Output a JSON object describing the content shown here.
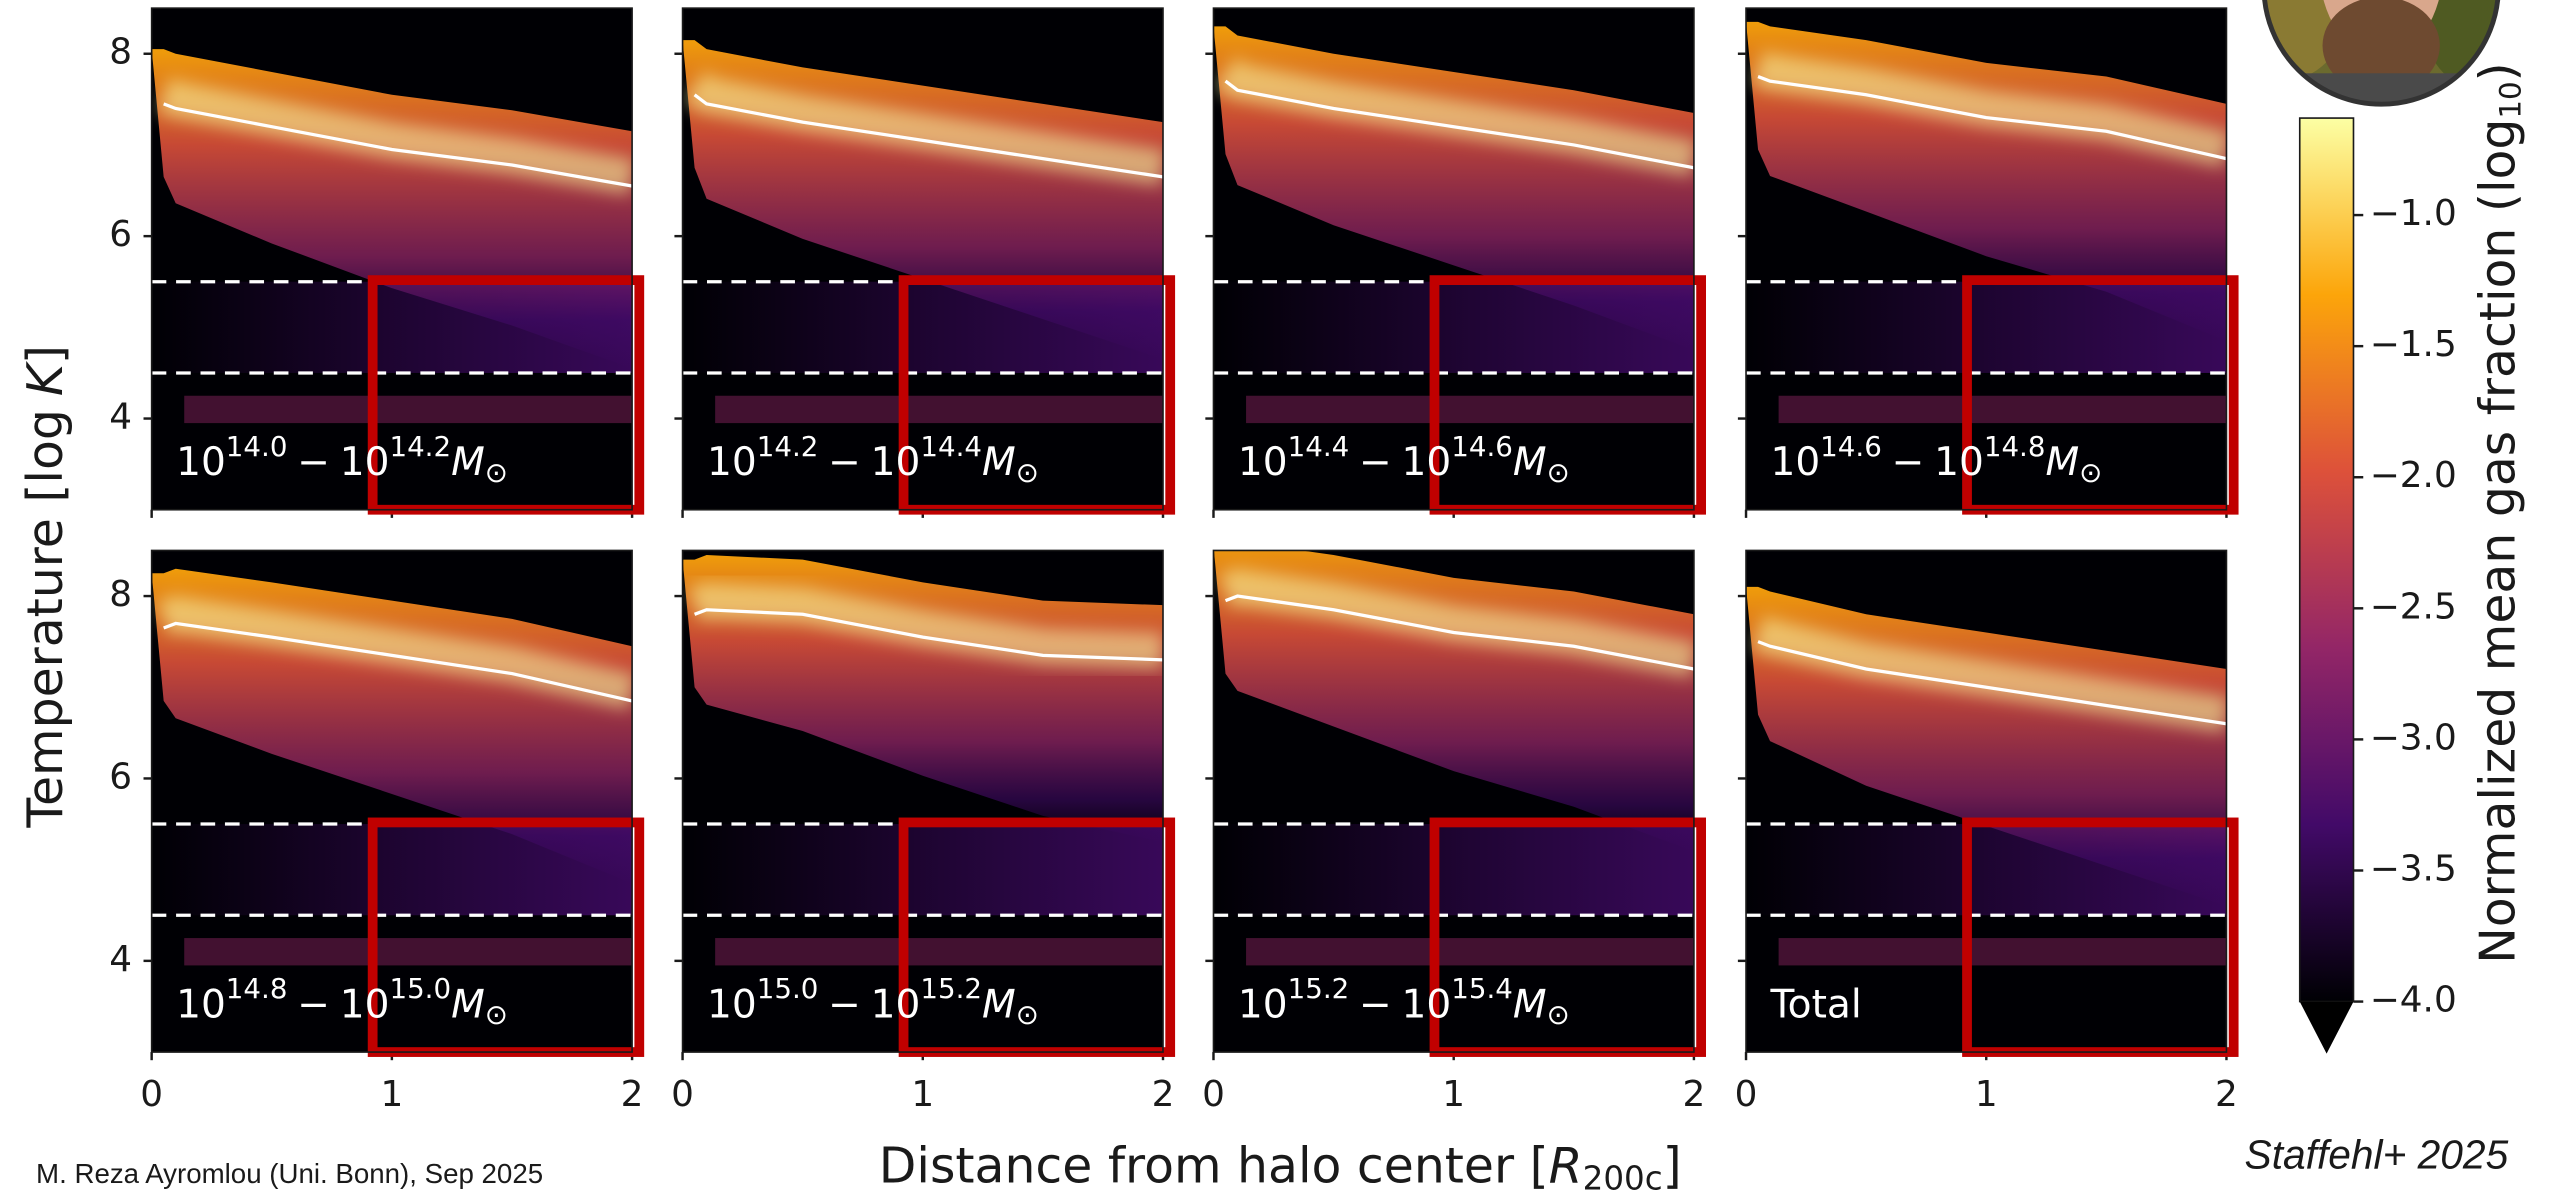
{
  "chart_data": {
    "type": "heatmap_grid",
    "ylabel": "Temperature [log",
    "ylabel_var": "K",
    "ylabel_end": "]",
    "xlabel": "Distance from halo center [",
    "xlabel_var": "R",
    "xlabel_sub": "200c",
    "xlabel_end": "]",
    "xlim": [
      0,
      2
    ],
    "xticks": [
      0,
      1,
      2
    ],
    "ylim": [
      3,
      8.5
    ],
    "yticks": [
      4,
      6,
      8
    ],
    "hlines": [
      5.5,
      4.5
    ],
    "x": [
      0.05,
      0.1,
      0.5,
      1,
      1.5,
      2
    ],
    "line_color": "#ffffff",
    "highlight_color": "#c00000",
    "mass_base": "10",
    "mass_sep": "−",
    "mass_unit": "M",
    "mass_unit_sub": "⊙",
    "panels": [
      {
        "label_lo": "14.0",
        "label_hi": "14.2",
        "values": [
          7.45,
          7.4,
          7.2,
          6.95,
          6.78,
          6.55
        ]
      },
      {
        "label_lo": "14.2",
        "label_hi": "14.4",
        "values": [
          7.55,
          7.45,
          7.25,
          7.05,
          6.85,
          6.65
        ]
      },
      {
        "label_lo": "14.4",
        "label_hi": "14.6",
        "values": [
          7.7,
          7.6,
          7.4,
          7.2,
          7.0,
          6.75
        ]
      },
      {
        "label_lo": "14.6",
        "label_hi": "14.8",
        "values": [
          7.75,
          7.7,
          7.55,
          7.3,
          7.15,
          6.85
        ]
      },
      {
        "label_lo": "14.8",
        "label_hi": "15.0",
        "values": [
          7.65,
          7.7,
          7.55,
          7.35,
          7.15,
          6.85
        ]
      },
      {
        "label_lo": "15.0",
        "label_hi": "15.2",
        "values": [
          7.8,
          7.85,
          7.8,
          7.55,
          7.35,
          7.3
        ]
      },
      {
        "label_lo": "15.2",
        "label_hi": "15.4",
        "values": [
          7.95,
          8.0,
          7.85,
          7.6,
          7.45,
          7.2
        ]
      },
      {
        "label": "Total",
        "values": [
          7.5,
          7.45,
          7.2,
          7.0,
          6.8,
          6.6
        ]
      }
    ],
    "colormap": [
      "#000004",
      "#420a68",
      "#932667",
      "#dd513a",
      "#fca50a",
      "#fcffa4"
    ],
    "colorbar": {
      "clim": [
        -4,
        -0.63
      ],
      "ticks": [
        {
          "value": -1.0,
          "label": "−1.0"
        },
        {
          "value": -1.5,
          "label": "−1.5"
        },
        {
          "value": -2.0,
          "label": "−2.0"
        },
        {
          "value": -2.5,
          "label": "−2.5"
        },
        {
          "value": -3.0,
          "label": "−3.0"
        },
        {
          "value": -3.5,
          "label": "−3.5"
        },
        {
          "value": -4.0,
          "label": "−4.0"
        }
      ],
      "label": "Normalized mean gas fraction (log",
      "label_sub": "10",
      "label_end": ")"
    },
    "footer_author": "M. Reza Ayromlou (Uni. Bonn), Sep 2025",
    "footer_citation": "Staffehl+ 2025"
  }
}
